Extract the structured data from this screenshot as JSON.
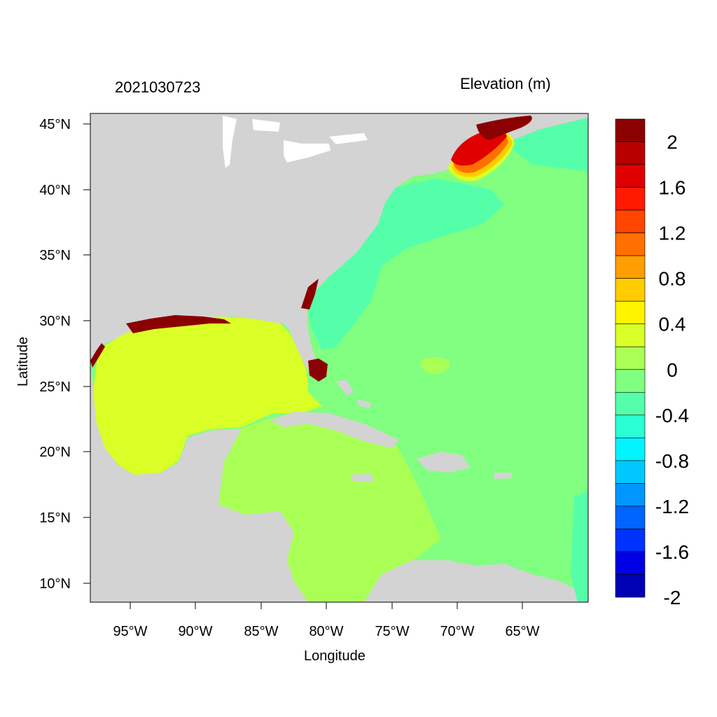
{
  "title": {
    "timestamp": "2021030723",
    "variable": "Elevation (m)"
  },
  "axes": {
    "xlabel": "Longitude",
    "ylabel": "Latitude",
    "x_ticks": [
      "95°W",
      "90°W",
      "85°W",
      "80°W",
      "75°W",
      "70°W",
      "65°W"
    ],
    "y_ticks": [
      "45°N",
      "40°N",
      "35°N",
      "30°N",
      "25°N",
      "20°N",
      "15°N",
      "10°N"
    ]
  },
  "colorbar": {
    "labels": [
      "2",
      "1.6",
      "1.2",
      "0.8",
      "0.4",
      "0",
      "-0.4",
      "-0.8",
      "-1.2",
      "-1.6",
      "-2"
    ],
    "colors": [
      "#8b0000",
      "#b80000",
      "#e00000",
      "#ff1a00",
      "#ff4500",
      "#ff7000",
      "#ff9e00",
      "#ffcc00",
      "#fff500",
      "#d9ff26",
      "#aaff55",
      "#80ff80",
      "#55ffaa",
      "#28ffd4",
      "#00f5ff",
      "#00c8ff",
      "#0096ff",
      "#0064ff",
      "#0032ff",
      "#0000e6",
      "#0000b4"
    ]
  },
  "colors": {
    "land": "#d3d3d3",
    "gulf": "#d9ff26",
    "caribbean": "#aaff55",
    "atlantic": "#80ff80",
    "shelf": "#55ffaa",
    "surge_high": "#8b0000"
  }
}
